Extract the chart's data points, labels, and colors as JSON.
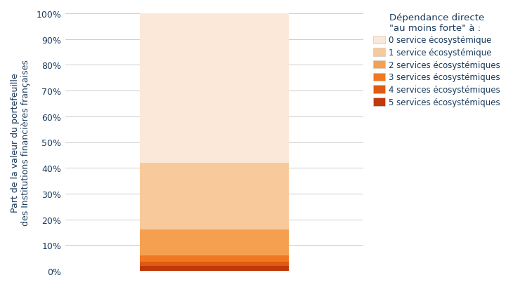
{
  "segments_bottom_to_top": [
    {
      "label": "5 services écosystémiques",
      "value": 2,
      "color": "#c0390a"
    },
    {
      "label": "4 services écosystémiques",
      "value": 1.5,
      "color": "#e05a10"
    },
    {
      "label": "3 services écosystémiques",
      "value": 2.5,
      "color": "#f07820"
    },
    {
      "label": "2 services écosystémiques",
      "value": 10,
      "color": "#f5a050"
    },
    {
      "label": "1 service écosystémique",
      "value": 26,
      "color": "#f8c99a"
    },
    {
      "label": "0 service écosystémique",
      "value": 58,
      "color": "#fce8d8"
    }
  ],
  "legend_order": [
    {
      "label": "0 service écosystémique",
      "color": "#fce8d8"
    },
    {
      "label": "1 service écosystémique",
      "color": "#f8c99a"
    },
    {
      "label": "2 services écosystémiques",
      "color": "#f5a050"
    },
    {
      "label": "3 services écosystémiques",
      "color": "#f07820"
    },
    {
      "label": "4 services écosystémiques",
      "color": "#e05a10"
    },
    {
      "label": "5 services écosystémiques",
      "color": "#c0390a"
    }
  ],
  "ylabel": "Part de la valeur du portefeuille\ndes Institutions financières françaises",
  "legend_title_line1": "Dépendance directe",
  "legend_title_line2": "\"au moins forte\" à :",
  "yticks": [
    0,
    10,
    20,
    30,
    40,
    50,
    60,
    70,
    80,
    90,
    100
  ],
  "ytick_labels": [
    "0%",
    "10%",
    "20%",
    "30%",
    "40%",
    "50%",
    "60%",
    "70%",
    "80%",
    "90%",
    "100%"
  ],
  "ylim": [
    0,
    100
  ],
  "background_color": "#ffffff",
  "grid_color": "#cccccc",
  "text_color": "#1a3a5c",
  "bar_width": 0.5
}
